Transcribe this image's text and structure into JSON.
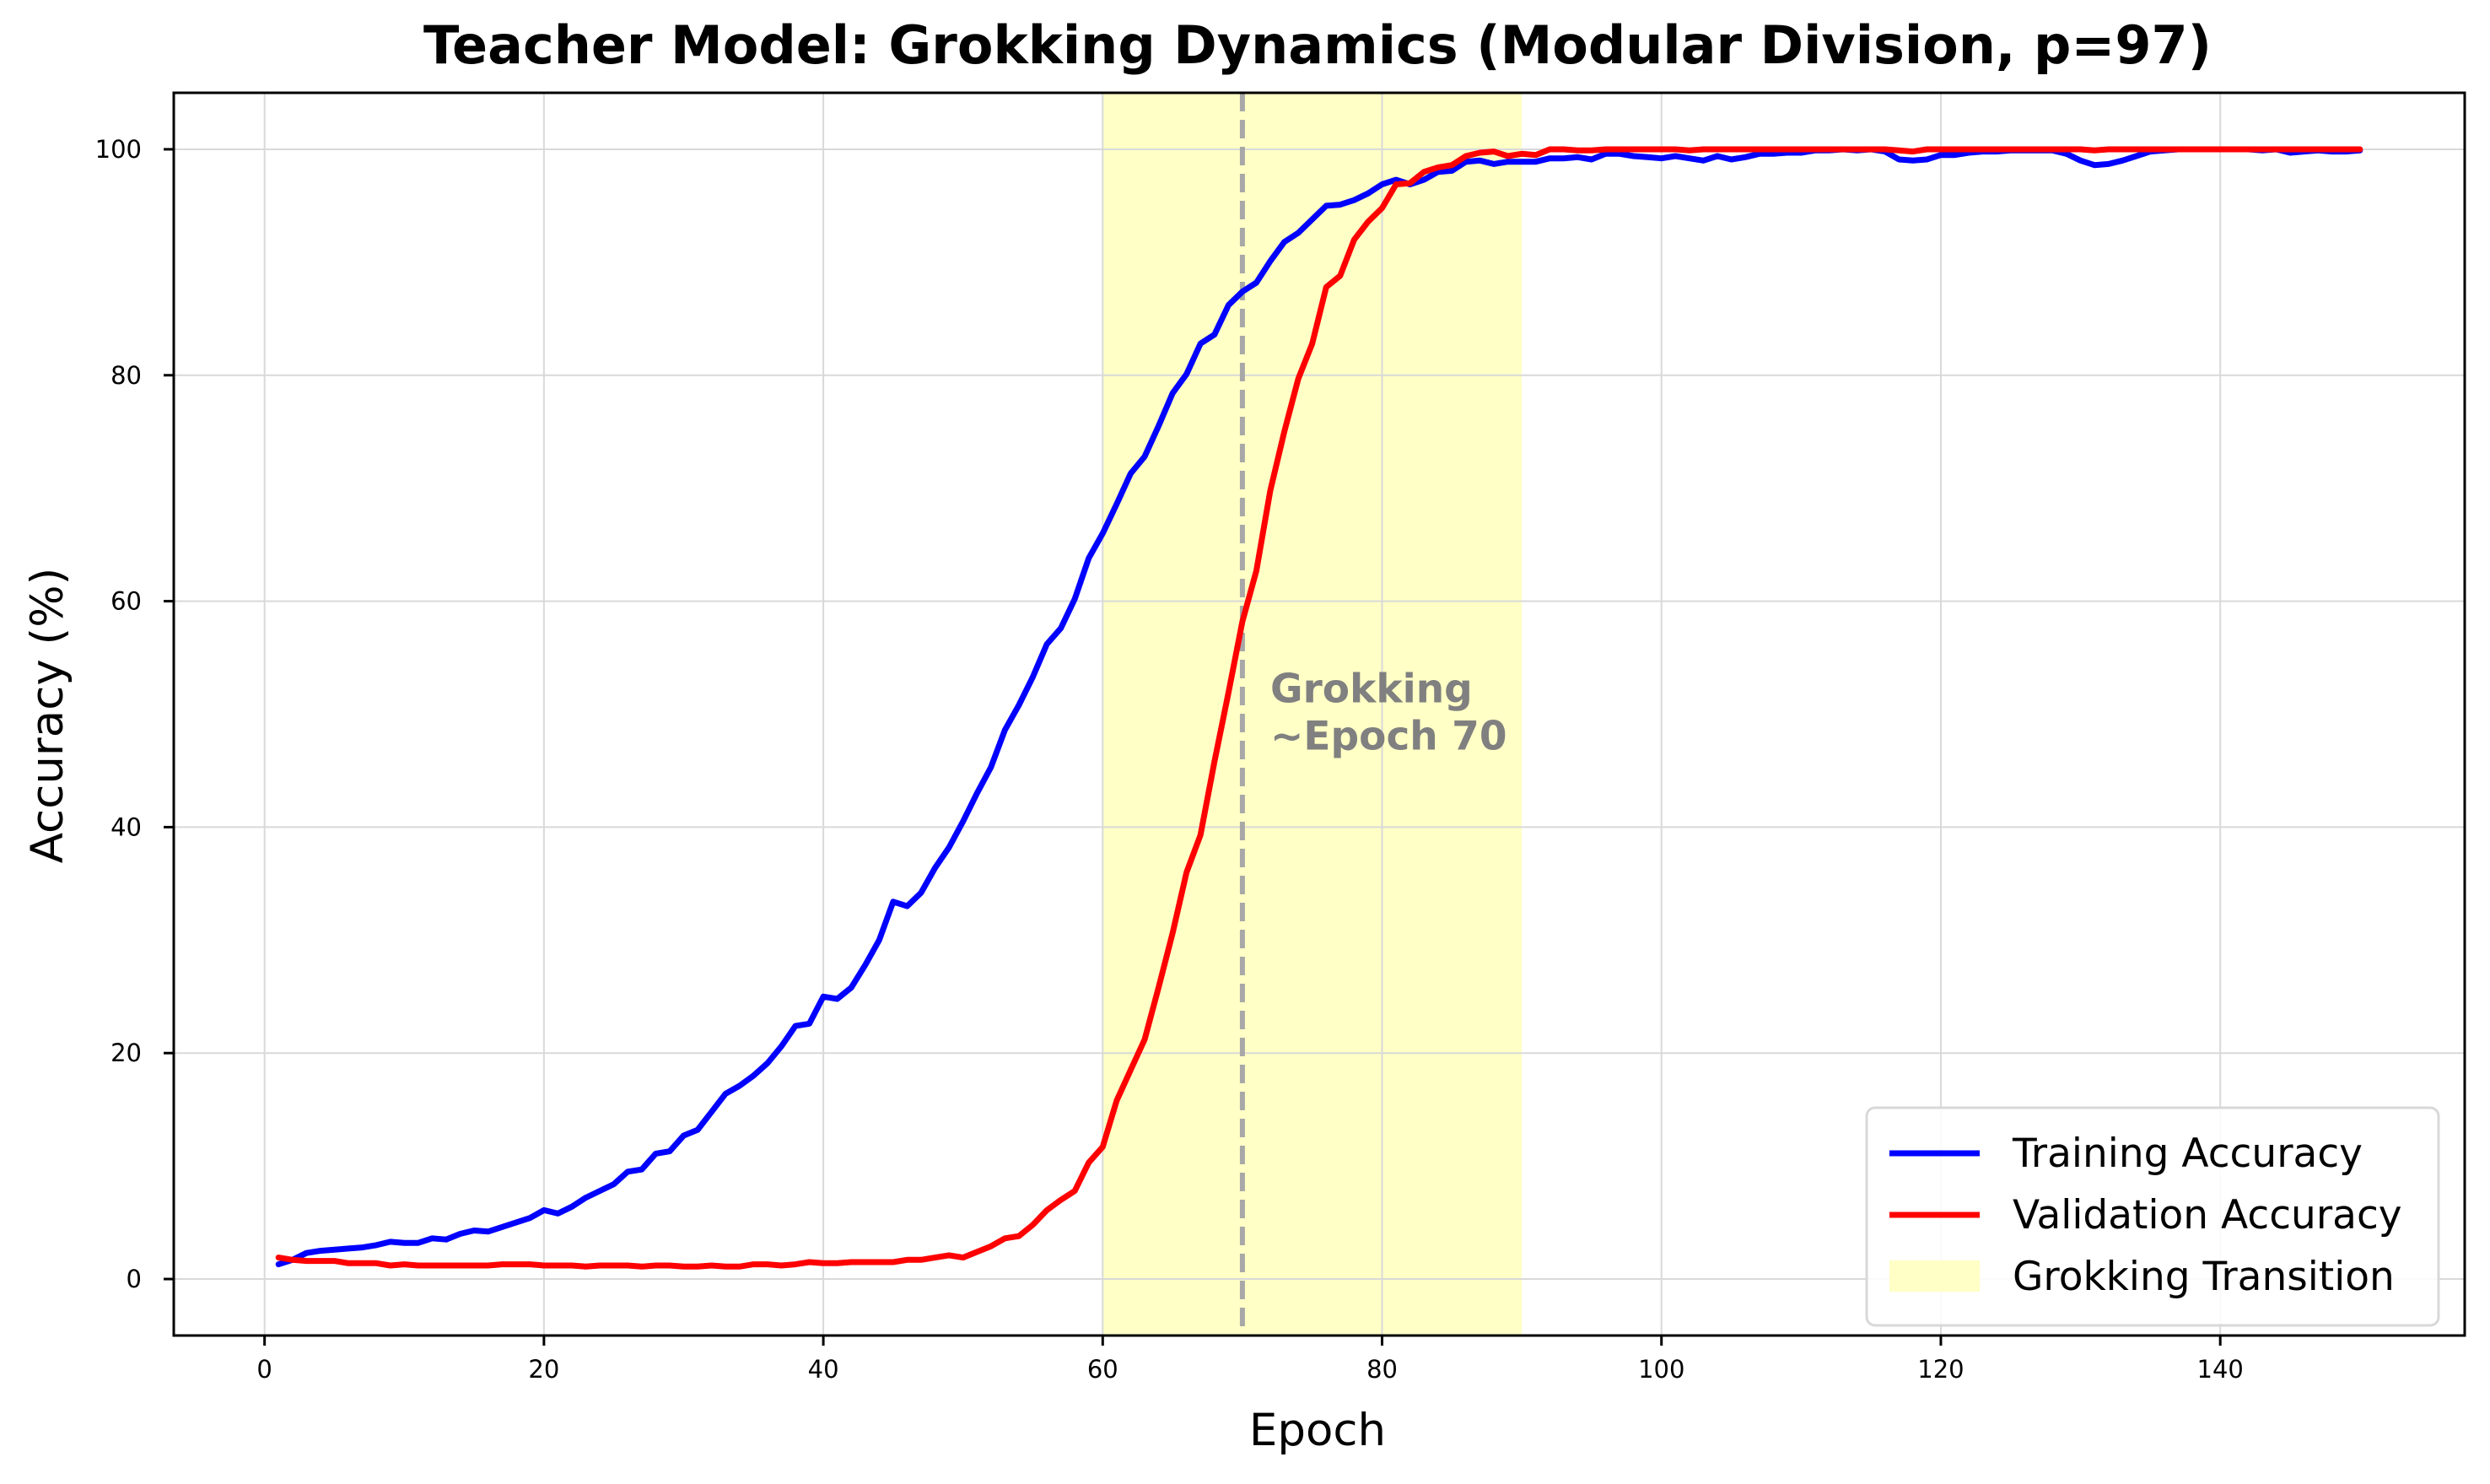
{
  "chart_data": {
    "type": "line",
    "title": "Teacher Model: Grokking Dynamics (Modular Division, p=97)",
    "xlabel": "Epoch",
    "ylabel": "Accuracy (%)",
    "xlim": [
      -6.5,
      157.5
    ],
    "ylim": [
      -5,
      105
    ],
    "xticks": [
      0,
      20,
      40,
      60,
      80,
      100,
      120,
      140
    ],
    "yticks": [
      0,
      20,
      40,
      60,
      80,
      100
    ],
    "grid": true,
    "legend_position": "lower-right",
    "shaded_region": {
      "label": "Grokking Transition",
      "x_start": 60,
      "x_end": 90,
      "color": "#ffffc6"
    },
    "vline": {
      "x": 70,
      "color": "#a8a8a8",
      "style": "dashed"
    },
    "annotation": {
      "lines": [
        "Grokking",
        "~Epoch 70"
      ],
      "x": 72,
      "y": 50,
      "color": "#808080"
    },
    "series": [
      {
        "name": "Training Accuracy",
        "color": "#0000ff",
        "points": [
          [
            1,
            1.3
          ],
          [
            2,
            1.7
          ],
          [
            3,
            2.3
          ],
          [
            4,
            2.5
          ],
          [
            5,
            2.6
          ],
          [
            6,
            2.7
          ],
          [
            7,
            2.8
          ],
          [
            8,
            3.0
          ],
          [
            9,
            3.3
          ],
          [
            10,
            3.2
          ],
          [
            11,
            3.2
          ],
          [
            12,
            3.6
          ],
          [
            13,
            3.5
          ],
          [
            14,
            4.0
          ],
          [
            15,
            4.3
          ],
          [
            16,
            4.2
          ],
          [
            17,
            4.6
          ],
          [
            18,
            5.0
          ],
          [
            19,
            5.4
          ],
          [
            20,
            6.1
          ],
          [
            21,
            5.8
          ],
          [
            22,
            6.4
          ],
          [
            23,
            7.2
          ],
          [
            24,
            7.8
          ],
          [
            25,
            8.4
          ],
          [
            26,
            9.5
          ],
          [
            27,
            9.7
          ],
          [
            28,
            11.1
          ],
          [
            29,
            11.3
          ],
          [
            30,
            12.7
          ],
          [
            31,
            13.2
          ],
          [
            32,
            14.8
          ],
          [
            33,
            16.4
          ],
          [
            34,
            17.1
          ],
          [
            35,
            18.0
          ],
          [
            36,
            19.1
          ],
          [
            37,
            20.6
          ],
          [
            38,
            22.4
          ],
          [
            39,
            22.6
          ],
          [
            40,
            25.0
          ],
          [
            41,
            24.8
          ],
          [
            42,
            25.8
          ],
          [
            43,
            27.8
          ],
          [
            44,
            30.0
          ],
          [
            45,
            33.4
          ],
          [
            46,
            33.0
          ],
          [
            47,
            34.2
          ],
          [
            48,
            36.4
          ],
          [
            49,
            38.2
          ],
          [
            50,
            40.5
          ],
          [
            51,
            43.0
          ],
          [
            52,
            45.3
          ],
          [
            53,
            48.6
          ],
          [
            54,
            50.8
          ],
          [
            55,
            53.3
          ],
          [
            56,
            56.2
          ],
          [
            57,
            57.6
          ],
          [
            58,
            60.2
          ],
          [
            59,
            63.8
          ],
          [
            60,
            66.0
          ],
          [
            61,
            68.6
          ],
          [
            62,
            71.3
          ],
          [
            63,
            72.8
          ],
          [
            64,
            75.5
          ],
          [
            65,
            78.4
          ],
          [
            66,
            80.1
          ],
          [
            67,
            82.8
          ],
          [
            68,
            83.6
          ],
          [
            69,
            86.2
          ],
          [
            70,
            87.4
          ],
          [
            71,
            88.2
          ],
          [
            72,
            90.1
          ],
          [
            73,
            91.8
          ],
          [
            74,
            92.6
          ],
          [
            75,
            93.8
          ],
          [
            76,
            95.0
          ],
          [
            77,
            95.1
          ],
          [
            78,
            95.5
          ],
          [
            79,
            96.1
          ],
          [
            80,
            96.9
          ],
          [
            81,
            97.3
          ],
          [
            82,
            96.9
          ],
          [
            83,
            97.3
          ],
          [
            84,
            98.0
          ],
          [
            85,
            98.1
          ],
          [
            86,
            98.9
          ],
          [
            87,
            99.0
          ],
          [
            88,
            98.7
          ],
          [
            89,
            98.9
          ],
          [
            90,
            98.9
          ],
          [
            91,
            98.9
          ],
          [
            92,
            99.2
          ],
          [
            93,
            99.2
          ],
          [
            94,
            99.3
          ],
          [
            95,
            99.1
          ],
          [
            96,
            99.6
          ],
          [
            97,
            99.6
          ],
          [
            98,
            99.4
          ],
          [
            99,
            99.3
          ],
          [
            100,
            99.2
          ],
          [
            101,
            99.4
          ],
          [
            102,
            99.2
          ],
          [
            103,
            99.0
          ],
          [
            104,
            99.4
          ],
          [
            105,
            99.1
          ],
          [
            106,
            99.3
          ],
          [
            107,
            99.6
          ],
          [
            108,
            99.6
          ],
          [
            109,
            99.7
          ],
          [
            110,
            99.7
          ],
          [
            111,
            99.9
          ],
          [
            112,
            99.9
          ],
          [
            113,
            100.0
          ],
          [
            114,
            99.9
          ],
          [
            115,
            100.0
          ],
          [
            116,
            99.8
          ],
          [
            117,
            99.1
          ],
          [
            118,
            99.0
          ],
          [
            119,
            99.1
          ],
          [
            120,
            99.5
          ],
          [
            121,
            99.5
          ],
          [
            122,
            99.7
          ],
          [
            123,
            99.8
          ],
          [
            124,
            99.8
          ],
          [
            125,
            99.9
          ],
          [
            126,
            99.9
          ],
          [
            127,
            99.9
          ],
          [
            128,
            99.9
          ],
          [
            129,
            99.6
          ],
          [
            130,
            99.0
          ],
          [
            131,
            98.6
          ],
          [
            132,
            98.7
          ],
          [
            133,
            99.0
          ],
          [
            134,
            99.4
          ],
          [
            135,
            99.8
          ],
          [
            136,
            99.9
          ],
          [
            137,
            100.0
          ],
          [
            138,
            100.0
          ],
          [
            139,
            100.0
          ],
          [
            140,
            100.0
          ],
          [
            141,
            100.0
          ],
          [
            142,
            100.0
          ],
          [
            143,
            99.9
          ],
          [
            144,
            100.0
          ],
          [
            145,
            99.7
          ],
          [
            146,
            99.8
          ],
          [
            147,
            99.9
          ],
          [
            148,
            99.8
          ],
          [
            149,
            99.8
          ],
          [
            150,
            99.9
          ]
        ]
      },
      {
        "name": "Validation Accuracy",
        "color": "#ff0000",
        "points": [
          [
            1,
            1.9
          ],
          [
            2,
            1.7
          ],
          [
            3,
            1.6
          ],
          [
            4,
            1.6
          ],
          [
            5,
            1.6
          ],
          [
            6,
            1.4
          ],
          [
            7,
            1.4
          ],
          [
            8,
            1.4
          ],
          [
            9,
            1.2
          ],
          [
            10,
            1.3
          ],
          [
            11,
            1.2
          ],
          [
            12,
            1.2
          ],
          [
            13,
            1.2
          ],
          [
            14,
            1.2
          ],
          [
            15,
            1.2
          ],
          [
            16,
            1.2
          ],
          [
            17,
            1.3
          ],
          [
            18,
            1.3
          ],
          [
            19,
            1.3
          ],
          [
            20,
            1.2
          ],
          [
            21,
            1.2
          ],
          [
            22,
            1.2
          ],
          [
            23,
            1.1
          ],
          [
            24,
            1.2
          ],
          [
            25,
            1.2
          ],
          [
            26,
            1.2
          ],
          [
            27,
            1.1
          ],
          [
            28,
            1.2
          ],
          [
            29,
            1.2
          ],
          [
            30,
            1.1
          ],
          [
            31,
            1.1
          ],
          [
            32,
            1.2
          ],
          [
            33,
            1.1
          ],
          [
            34,
            1.1
          ],
          [
            35,
            1.3
          ],
          [
            36,
            1.3
          ],
          [
            37,
            1.2
          ],
          [
            38,
            1.3
          ],
          [
            39,
            1.5
          ],
          [
            40,
            1.4
          ],
          [
            41,
            1.4
          ],
          [
            42,
            1.5
          ],
          [
            43,
            1.5
          ],
          [
            44,
            1.5
          ],
          [
            45,
            1.5
          ],
          [
            46,
            1.7
          ],
          [
            47,
            1.7
          ],
          [
            48,
            1.9
          ],
          [
            49,
            2.1
          ],
          [
            50,
            1.9
          ],
          [
            51,
            2.4
          ],
          [
            52,
            2.9
          ],
          [
            53,
            3.6
          ],
          [
            54,
            3.8
          ],
          [
            55,
            4.8
          ],
          [
            56,
            6.1
          ],
          [
            57,
            7.0
          ],
          [
            58,
            7.8
          ],
          [
            59,
            10.3
          ],
          [
            60,
            11.7
          ],
          [
            61,
            15.8
          ],
          [
            62,
            18.5
          ],
          [
            63,
            21.2
          ],
          [
            64,
            25.8
          ],
          [
            65,
            30.6
          ],
          [
            66,
            36.0
          ],
          [
            67,
            39.3
          ],
          [
            68,
            45.8
          ],
          [
            69,
            51.9
          ],
          [
            70,
            58.2
          ],
          [
            71,
            62.7
          ],
          [
            72,
            69.8
          ],
          [
            73,
            75.0
          ],
          [
            74,
            79.7
          ],
          [
            75,
            82.8
          ],
          [
            76,
            87.8
          ],
          [
            77,
            88.8
          ],
          [
            78,
            92.0
          ],
          [
            79,
            93.6
          ],
          [
            80,
            94.8
          ],
          [
            81,
            96.9
          ],
          [
            82,
            97.0
          ],
          [
            83,
            98.0
          ],
          [
            84,
            98.4
          ],
          [
            85,
            98.6
          ],
          [
            86,
            99.4
          ],
          [
            87,
            99.7
          ],
          [
            88,
            99.8
          ],
          [
            89,
            99.4
          ],
          [
            90,
            99.6
          ],
          [
            91,
            99.5
          ],
          [
            92,
            100.0
          ],
          [
            93,
            100.0
          ],
          [
            94,
            99.9
          ],
          [
            95,
            99.9
          ],
          [
            96,
            100.0
          ],
          [
            97,
            100.0
          ],
          [
            98,
            100.0
          ],
          [
            99,
            100.0
          ],
          [
            100,
            100.0
          ],
          [
            101,
            100.0
          ],
          [
            102,
            99.9
          ],
          [
            103,
            100.0
          ],
          [
            104,
            100.0
          ],
          [
            105,
            100.0
          ],
          [
            106,
            100.0
          ],
          [
            107,
            100.0
          ],
          [
            108,
            100.0
          ],
          [
            109,
            100.0
          ],
          [
            110,
            100.0
          ],
          [
            111,
            100.0
          ],
          [
            112,
            100.0
          ],
          [
            113,
            100.0
          ],
          [
            114,
            100.0
          ],
          [
            115,
            100.0
          ],
          [
            116,
            100.0
          ],
          [
            117,
            99.9
          ],
          [
            118,
            99.8
          ],
          [
            119,
            100.0
          ],
          [
            120,
            100.0
          ],
          [
            121,
            100.0
          ],
          [
            122,
            100.0
          ],
          [
            123,
            100.0
          ],
          [
            124,
            100.0
          ],
          [
            125,
            100.0
          ],
          [
            126,
            100.0
          ],
          [
            127,
            100.0
          ],
          [
            128,
            100.0
          ],
          [
            129,
            100.0
          ],
          [
            130,
            100.0
          ],
          [
            131,
            99.9
          ],
          [
            132,
            100.0
          ],
          [
            133,
            100.0
          ],
          [
            134,
            100.0
          ],
          [
            135,
            100.0
          ],
          [
            136,
            100.0
          ],
          [
            137,
            100.0
          ],
          [
            138,
            100.0
          ],
          [
            139,
            100.0
          ],
          [
            140,
            100.0
          ],
          [
            141,
            100.0
          ],
          [
            142,
            100.0
          ],
          [
            143,
            100.0
          ],
          [
            144,
            100.0
          ],
          [
            145,
            100.0
          ],
          [
            146,
            100.0
          ],
          [
            147,
            100.0
          ],
          [
            148,
            100.0
          ],
          [
            149,
            100.0
          ],
          [
            150,
            100.0
          ]
        ]
      }
    ]
  }
}
